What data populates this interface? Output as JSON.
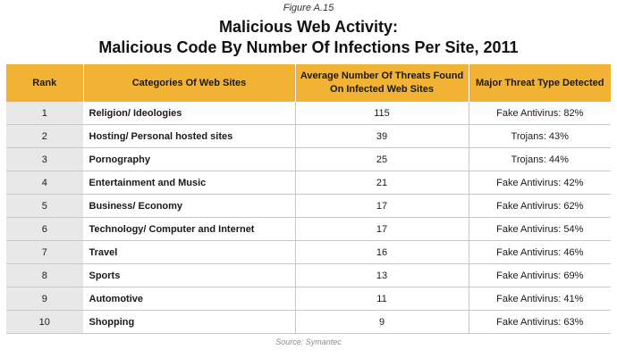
{
  "figure_label": "Figure A.15",
  "title_line1": "Malicious Web Activity:",
  "title_line2": "Malicious Code By Number Of Infections Per Site, 2011",
  "columns": [
    "Rank",
    "Categories Of Web Sites",
    "Average Number Of Threats Found On Infected Web Sites",
    "Major Threat Type Detected"
  ],
  "rows": [
    {
      "rank": "1",
      "category": "Religion/ Ideologies",
      "avg": "115",
      "threat": "Fake Antivirus: 82%"
    },
    {
      "rank": "2",
      "category": "Hosting/ Personal hosted sites",
      "avg": "39",
      "threat": "Trojans: 43%"
    },
    {
      "rank": "3",
      "category": "Pornography",
      "avg": "25",
      "threat": "Trojans: 44%"
    },
    {
      "rank": "4",
      "category": "Entertainment and Music",
      "avg": "21",
      "threat": "Fake Antivirus: 42%"
    },
    {
      "rank": "5",
      "category": "Business/ Economy",
      "avg": "17",
      "threat": "Fake Antivirus: 62%"
    },
    {
      "rank": "6",
      "category": "Technology/ Computer and Internet",
      "avg": "17",
      "threat": "Fake Antivirus: 54%"
    },
    {
      "rank": "7",
      "category": "Travel",
      "avg": "16",
      "threat": "Fake Antivirus: 46%"
    },
    {
      "rank": "8",
      "category": "Sports",
      "avg": "13",
      "threat": "Fake Antivirus: 69%"
    },
    {
      "rank": "9",
      "category": "Automotive",
      "avg": "11",
      "threat": "Fake Antivirus: 41%"
    },
    {
      "rank": "10",
      "category": "Shopping",
      "avg": "9",
      "threat": "Fake Antivirus: 63%"
    }
  ],
  "source": "Source: Symantec",
  "colors": {
    "header_bg": "#f2b233",
    "rank_bg": "#e8e8e8",
    "row_border": "#c8c8c8"
  }
}
